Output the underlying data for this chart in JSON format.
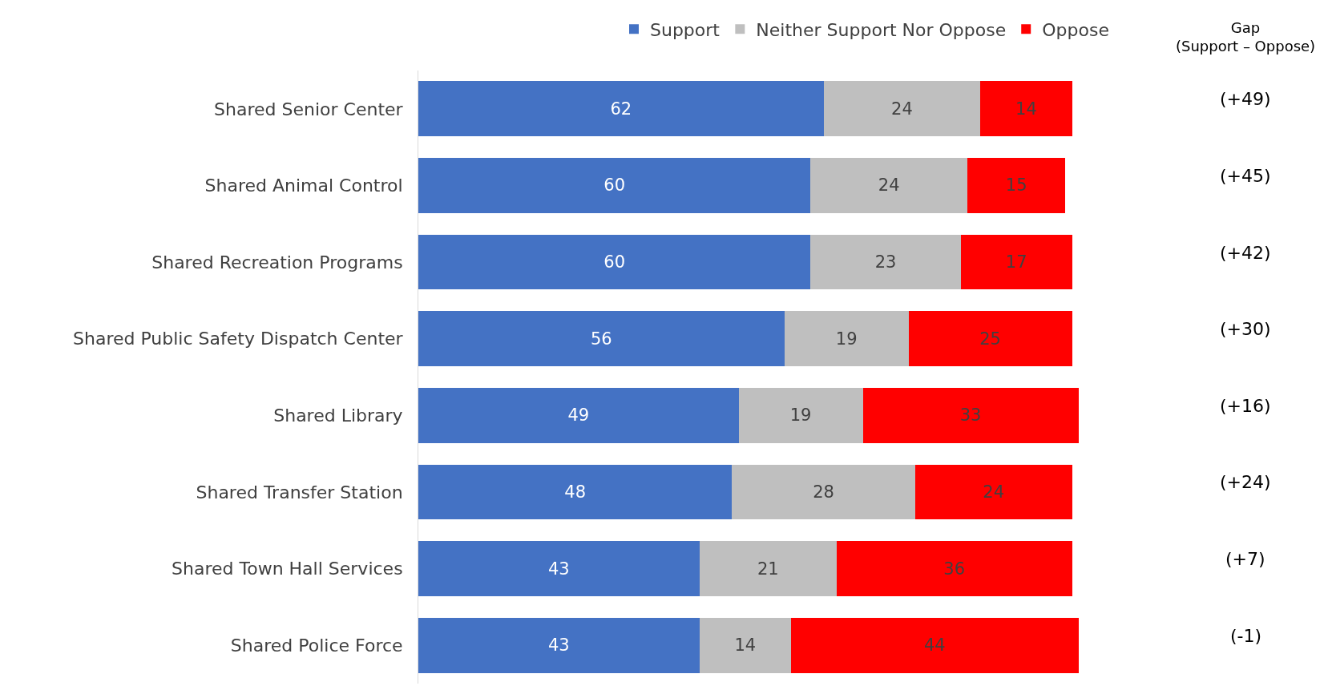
{
  "chart_data": {
    "type": "bar",
    "orientation": "horizontal",
    "stacked": true,
    "data_labels": true,
    "legend": "top right",
    "categories": [
      "Shared Senior Center",
      "Shared Animal Control",
      "Shared Recreation Programs",
      "Shared Public Safety Dispatch Center",
      "Shared Library",
      "Shared Transfer Station",
      "Shared Town Hall Services",
      "Shared Police Force"
    ],
    "series": [
      {
        "name": "Support",
        "color": "#4472c4",
        "values": [
          62,
          60,
          60,
          56,
          49,
          48,
          43,
          43
        ]
      },
      {
        "name": "Neither Support Nor Oppose",
        "color": "#bfbfbf",
        "values": [
          24,
          24,
          23,
          19,
          19,
          28,
          21,
          14
        ]
      },
      {
        "name": "Oppose",
        "color": "#ff0000",
        "values": [
          14,
          15,
          17,
          25,
          33,
          24,
          36,
          44
        ]
      }
    ],
    "annotations": [
      "Gap\n(Support – Oppose)",
      "(+49)",
      "(+45)",
      "(+42)",
      "(+30)",
      "(+16)",
      "(+24)",
      "(+7)",
      "(-1)"
    ]
  }
}
